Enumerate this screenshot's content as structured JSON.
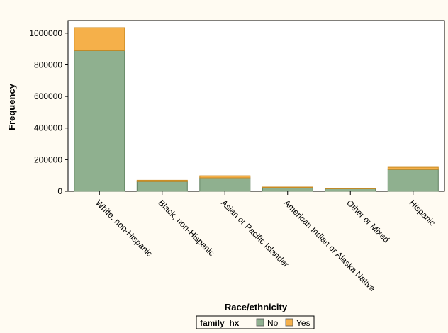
{
  "chart_data": {
    "type": "bar",
    "stacked": true,
    "categories": [
      "White, non-Hispanic",
      "Black, non-Hispanic",
      "Asian or Pacific Islander",
      "American Indian or Alaska Native",
      "Other or Mixed",
      "Hispanic"
    ],
    "series": [
      {
        "name": "No",
        "color": "#8fb08f",
        "values": [
          890000,
          62000,
          85000,
          24000,
          16000,
          138000
        ]
      },
      {
        "name": "Yes",
        "color": "#f5b04a",
        "values": [
          145000,
          8000,
          13000,
          3000,
          2000,
          14000
        ]
      }
    ],
    "xlabel": "Race/ethnicity",
    "ylabel": "Frequency",
    "ylim": [
      0,
      1080000
    ],
    "yticks": [
      0,
      200000,
      400000,
      600000,
      800000,
      1000000
    ],
    "grid": false,
    "legend": {
      "title": "family_hx",
      "placement": "bottom"
    }
  }
}
